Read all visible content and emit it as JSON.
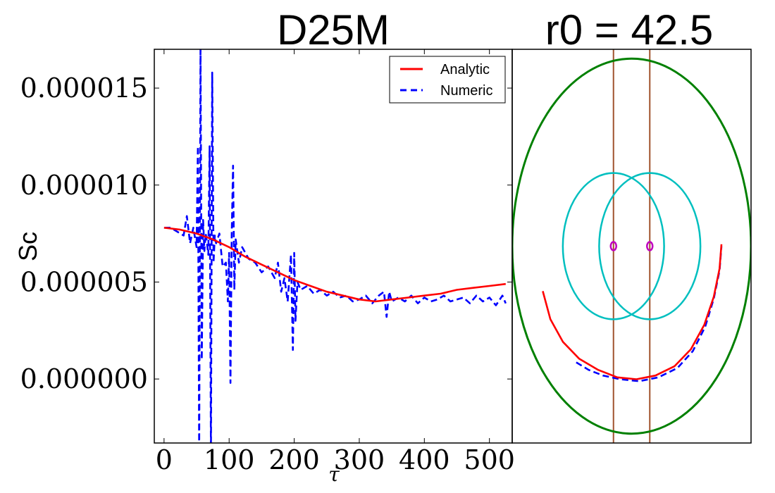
{
  "chart_data": [
    {
      "type": "line",
      "title": "D25M",
      "xlabel": "τ",
      "ylabel": "Sc",
      "xlim": [
        -15,
        535
      ],
      "ylim": [
        -3.3e-06,
        1.7e-05
      ],
      "xticks": [
        0,
        100,
        200,
        300,
        400,
        500
      ],
      "xtick_labels": [
        "0",
        "100",
        "200",
        "300",
        "400",
        "500"
      ],
      "yticks": [
        0.0,
        5e-06,
        1e-05,
        1.5e-05
      ],
      "ytick_labels": [
        "0.000000",
        "0.000005",
        "0.000010",
        "0.000015"
      ],
      "legend": {
        "placement": "top-right",
        "entries": [
          "Analytic",
          "Numeric"
        ]
      },
      "colors": {
        "Analytic": "#ff0000",
        "Numeric": "#0000ff"
      },
      "series": [
        {
          "name": "Analytic",
          "style": "solid",
          "x": [
            0,
            25,
            50,
            75,
            100,
            125,
            150,
            175,
            200,
            225,
            250,
            275,
            300,
            325,
            350,
            375,
            400,
            425,
            450,
            475,
            500,
            525
          ],
          "y": [
            7.8e-06,
            7.7e-06,
            7.5e-06,
            7.2e-06,
            6.8e-06,
            6.3e-06,
            5.9e-06,
            5.5e-06,
            5.1e-06,
            4.8e-06,
            4.5e-06,
            4.3e-06,
            4.1e-06,
            4e-06,
            4.1e-06,
            4.2e-06,
            4.3e-06,
            4.4e-06,
            4.6e-06,
            4.7e-06,
            4.8e-06,
            4.9e-06
          ]
        },
        {
          "name": "Numeric",
          "style": "dashed",
          "x": [
            0,
            10,
            20,
            30,
            35,
            40,
            45,
            50,
            52,
            54,
            56,
            58,
            60,
            62,
            64,
            66,
            68,
            70,
            72,
            74,
            76,
            78,
            80,
            85,
            90,
            95,
            98,
            100,
            102,
            104,
            106,
            108,
            110,
            115,
            120,
            130,
            140,
            150,
            160,
            170,
            175,
            180,
            185,
            190,
            195,
            198,
            200,
            202,
            205,
            210,
            220,
            230,
            240,
            250,
            260,
            270,
            280,
            290,
            300,
            310,
            320,
            330,
            338,
            342,
            346,
            350,
            360,
            370,
            380,
            390,
            400,
            410,
            420,
            430,
            440,
            450,
            460,
            470,
            480,
            490,
            500,
            510,
            520,
            525
          ],
          "y": [
            7.8e-06,
            7.8e-06,
            7.6e-06,
            7.4e-06,
            8.4e-06,
            7e-06,
            7.8e-06,
            6.8e-06,
            1.2e-05,
            -4e-06,
            1.72e-05,
            1e-06,
            8.2e-06,
            6.6e-06,
            7.5e-06,
            7e-06,
            6.4e-06,
            1.2e-05,
            -4e-06,
            1.58e-05,
            6e-06,
            7.4e-06,
            7e-06,
            7.5e-06,
            5.8e-06,
            6e-06,
            4e-06,
            6.5e-06,
            -2e-07,
            7.5e-06,
            1.1e-05,
            4.6e-06,
            7.2e-06,
            6e-06,
            6.8e-06,
            6.2e-06,
            6e-06,
            5.5e-06,
            5.8e-06,
            5.2e-06,
            6e-06,
            4.5e-06,
            5.2e-06,
            4e-06,
            6.4e-06,
            1.5e-06,
            6.5e-06,
            3e-06,
            5e-06,
            4.6e-06,
            4.8e-06,
            4.4e-06,
            4.6e-06,
            4.3e-06,
            4.5e-06,
            4.2e-06,
            4.3e-06,
            4e-06,
            4.1e-06,
            4.3e-06,
            3.9e-06,
            4.3e-06,
            4.5e-06,
            3.2e-06,
            4.5e-06,
            4e-06,
            4.2e-06,
            4e-06,
            4.3e-06,
            3.9e-06,
            4.2e-06,
            4e-06,
            4.1e-06,
            4.3e-06,
            4e-06,
            4.1e-06,
            4.2e-06,
            3.9e-06,
            4.3e-06,
            4e-06,
            4.2e-06,
            3.8e-06,
            4.3e-06,
            3.9e-06
          ]
        }
      ]
    },
    {
      "type": "diagram",
      "title": "r0 = 42.5",
      "xlim": [
        -1.25,
        1.25
      ],
      "ylim": [
        -1.05,
        1.05
      ],
      "colors": {
        "outer_circle": "#008000",
        "inner_circles": "#00bfbf",
        "vertical_lines": "#a0522d",
        "centers": "#bf00bf",
        "Analytic": "#ff0000",
        "Numeric": "#0000ff"
      },
      "outer_circle": {
        "cx": 0,
        "cy": 0,
        "rx": 1.25,
        "ry": 1.0
      },
      "inner_circles": [
        {
          "cx": -0.19,
          "cy": 0,
          "rx": 0.53,
          "ry": 0.39
        },
        {
          "cx": 0.19,
          "cy": 0,
          "rx": 0.53,
          "ry": 0.39
        }
      ],
      "vertical_lines_x": [
        -0.19,
        0.19
      ],
      "centers": [
        {
          "x": -0.19,
          "y": 0
        },
        {
          "x": 0.19,
          "y": 0
        }
      ],
      "paths": [
        {
          "name": "Analytic",
          "style": "solid",
          "x": [
            -0.93,
            -0.85,
            -0.72,
            -0.55,
            -0.35,
            -0.15,
            0.05,
            0.25,
            0.45,
            0.62,
            0.76,
            0.86,
            0.92,
            0.94
          ],
          "y": [
            -0.24,
            -0.39,
            -0.51,
            -0.6,
            -0.66,
            -0.7,
            -0.71,
            -0.69,
            -0.64,
            -0.55,
            -0.42,
            -0.27,
            -0.12,
            0.01
          ]
        },
        {
          "name": "Numeric",
          "style": "dashed",
          "x": [
            -0.58,
            -0.45,
            -0.3,
            -0.12,
            0.08,
            0.28,
            0.48,
            0.64,
            0.77,
            0.86,
            0.92,
            0.94
          ],
          "y": [
            -0.62,
            -0.66,
            -0.69,
            -0.71,
            -0.72,
            -0.7,
            -0.65,
            -0.56,
            -0.43,
            -0.28,
            -0.13,
            0.0
          ]
        }
      ]
    }
  ]
}
